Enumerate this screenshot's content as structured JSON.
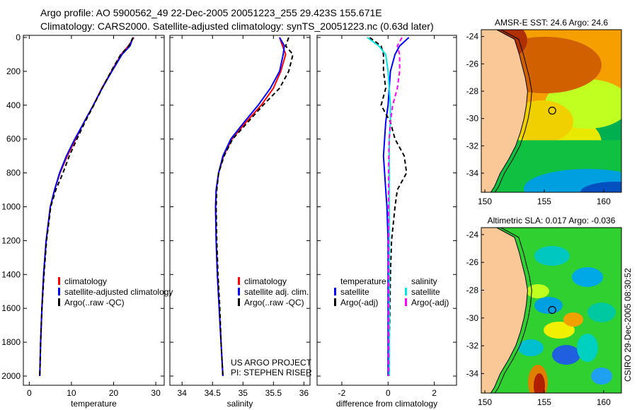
{
  "title_line1": "Argo profile: AO 5900562_49 22-Dec-2005 20051223_255 29.423S 155.671E",
  "title_line2": "Climatology: CARS2000. Satellite-adjusted climatology: synTS_20051223.nc (0.63d later)",
  "side_label": "CSIRO 29-Dec-2005 08:30:52",
  "project_label_1": "US ARGO PROJECT",
  "project_label_2": "PI: STEPHEN RISER",
  "colors": {
    "climatology": "#ff0000",
    "satellite": "#0000ff",
    "argo": "#000000",
    "sal_satellite": "#00e5e5",
    "sal_argo": "#ff00ff"
  },
  "chart_data": [
    {
      "type": "line",
      "xlabel": "temperature",
      "ylabel": "",
      "xlim": [
        -1.4,
        32
      ],
      "ylim": [
        2050,
        0
      ],
      "xticks": [
        0,
        10,
        20,
        30
      ],
      "yticks": [
        0,
        200,
        400,
        600,
        800,
        1000,
        1200,
        1400,
        1600,
        1800,
        2000
      ],
      "legend": [
        "climatology",
        "satellite-adjusted climatology",
        "Argo(..raw -QC)"
      ],
      "depth": [
        0,
        50,
        100,
        200,
        300,
        400,
        500,
        600,
        700,
        800,
        900,
        1000,
        1200,
        1400,
        1600,
        1800,
        2000
      ],
      "series": [
        {
          "name": "climatology",
          "values": [
            24.8,
            23.5,
            21.8,
            19.5,
            17.2,
            15.2,
            13.0,
            11.0,
            9.0,
            7.3,
            6.0,
            5.0,
            4.0,
            3.4,
            3.0,
            2.7,
            2.5
          ]
        },
        {
          "name": "satellite-adjusted climatology",
          "values": [
            24.6,
            23.9,
            22.0,
            19.6,
            17.3,
            15.2,
            13.0,
            10.8,
            8.8,
            7.2,
            6.0,
            5.0,
            4.0,
            3.4,
            3.0,
            2.7,
            2.5
          ]
        },
        {
          "name": "Argo(..raw -QC)",
          "values": [
            24.6,
            23.6,
            21.7,
            19.4,
            17.3,
            15.3,
            13.2,
            11.3,
            9.5,
            8.0,
            6.3,
            5.1,
            4.1,
            3.5,
            3.0,
            2.7,
            2.5
          ]
        }
      ]
    },
    {
      "type": "line",
      "xlabel": "salinity",
      "xlim": [
        33.8,
        36.1
      ],
      "xticks": [
        34,
        34.5,
        35,
        35.5,
        36
      ],
      "legend": [
        "climatology",
        "satellite adj. clim.",
        "Argo(..raw -QC)"
      ],
      "depth": [
        0,
        50,
        100,
        200,
        300,
        400,
        500,
        600,
        700,
        800,
        900,
        1000,
        1200,
        1400,
        1600,
        1800,
        2000
      ],
      "series": [
        {
          "name": "climatology",
          "values": [
            35.6,
            35.65,
            35.7,
            35.62,
            35.5,
            35.3,
            35.05,
            34.82,
            34.68,
            34.6,
            34.56,
            34.55,
            34.56,
            34.58,
            34.61,
            34.64,
            34.67
          ]
        },
        {
          "name": "satellite adj. clim.",
          "values": [
            35.6,
            35.68,
            35.66,
            35.6,
            35.45,
            35.25,
            35.02,
            34.8,
            34.67,
            34.6,
            34.56,
            34.55,
            34.56,
            34.58,
            34.61,
            34.64,
            34.67
          ]
        },
        {
          "name": "Argo(..raw -QC)",
          "values": [
            35.75,
            35.7,
            35.82,
            35.75,
            35.6,
            35.33,
            35.08,
            34.83,
            34.69,
            34.6,
            34.57,
            34.56,
            34.57,
            34.59,
            34.62,
            34.64,
            34.67
          ]
        }
      ]
    },
    {
      "type": "line",
      "xlabel": "difference from climatology",
      "xlim": [
        -3.07,
        2.96
      ],
      "xticks": [
        -2,
        0,
        2
      ],
      "legend_left_title": "temperature",
      "legend_right_title": "salinity",
      "legend": [
        "satellite",
        "Argo(-adj)",
        "satellite",
        "Argo(-adj)"
      ],
      "depth": [
        0,
        50,
        100,
        200,
        300,
        400,
        500,
        600,
        700,
        800,
        900,
        1000,
        1200,
        1400,
        1600,
        1800,
        2000
      ],
      "series": [
        {
          "name": "temperature satellite",
          "values": [
            0.9,
            0.5,
            0.3,
            0.1,
            0.05,
            0.0,
            -0.1,
            -0.15,
            -0.2,
            -0.15,
            -0.1,
            -0.05,
            0,
            0,
            0,
            0,
            0
          ]
        },
        {
          "name": "temperature Argo(-adj)",
          "values": [
            -0.8,
            -0.3,
            -0.2,
            -0.2,
            -0.1,
            -0.3,
            0.1,
            0.3,
            0.7,
            0.8,
            0.4,
            0.3,
            0.15,
            0.1,
            0.08,
            0.05,
            0.05
          ]
        },
        {
          "name": "salinity satellite",
          "values": [
            -0.9,
            -0.4,
            -0.1,
            0.0,
            0.05,
            0.1,
            0.1,
            0.05,
            0.05,
            0.05,
            0.05,
            0.05,
            0.05,
            0.05,
            0.05,
            0.05,
            0.05
          ]
        },
        {
          "name": "salinity Argo(-adj)",
          "values": [
            0.6,
            0.4,
            0.5,
            0.5,
            0.4,
            0.2,
            0.1,
            0.05,
            0.03,
            0.02,
            0.02,
            0.02,
            0.02,
            0.02,
            0.02,
            0.02,
            0.02
          ]
        }
      ]
    },
    {
      "type": "heatmap",
      "title": "AMSR-E SST: 24.6 Argo: 24.6",
      "xlim": [
        149.7,
        161.5
      ],
      "ylim": [
        -35.4,
        -23.5
      ],
      "xticks": [
        150,
        155,
        160
      ],
      "yticks": [
        -24,
        -26,
        -28,
        -30,
        -32,
        -34
      ],
      "marker": {
        "lon": 155.671,
        "lat": -29.423
      }
    },
    {
      "type": "heatmap",
      "title": "Altimetric SLA: 0.017 Argo: -0.036",
      "xlim": [
        149.7,
        161.5
      ],
      "ylim": [
        -35.4,
        -23.5
      ],
      "xticks": [
        150,
        155,
        160
      ],
      "yticks": [
        -24,
        -26,
        -28,
        -30,
        -32,
        -34
      ],
      "marker": {
        "lon": 155.671,
        "lat": -29.423
      }
    }
  ]
}
